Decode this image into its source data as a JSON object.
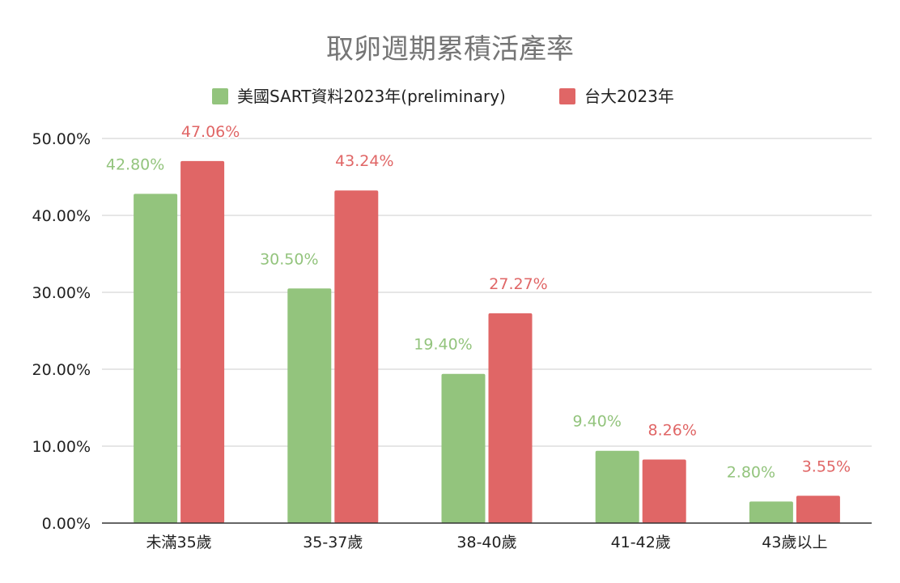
{
  "chart_data": {
    "type": "bar",
    "title": "取卵週期累積活產率",
    "categories": [
      "未滿35歲",
      "35-37歲",
      "38-40歲",
      "41-42歲",
      "43歲以上"
    ],
    "series": [
      {
        "name": "美國SART資料2023年(preliminary)",
        "color": "#93c47d",
        "values": [
          42.8,
          30.5,
          19.4,
          9.4,
          2.8
        ],
        "labels": [
          "42.80%",
          "30.50%",
          "19.40%",
          "9.40%",
          "2.80%"
        ]
      },
      {
        "name": "台大2023年",
        "color": "#e06666",
        "values": [
          47.06,
          43.24,
          27.27,
          8.26,
          3.55
        ],
        "labels": [
          "47.06%",
          "43.24%",
          "27.27%",
          "8.26%",
          "3.55%"
        ]
      }
    ],
    "ylim": [
      0,
      50
    ],
    "yticks": [
      0,
      10,
      20,
      30,
      40,
      50
    ],
    "ytick_labels": [
      "0.00%",
      "10.00%",
      "20.00%",
      "30.00%",
      "40.00%",
      "50.00%"
    ],
    "xlabel": "",
    "ylabel": "",
    "grid": true,
    "legend_position": "top"
  }
}
